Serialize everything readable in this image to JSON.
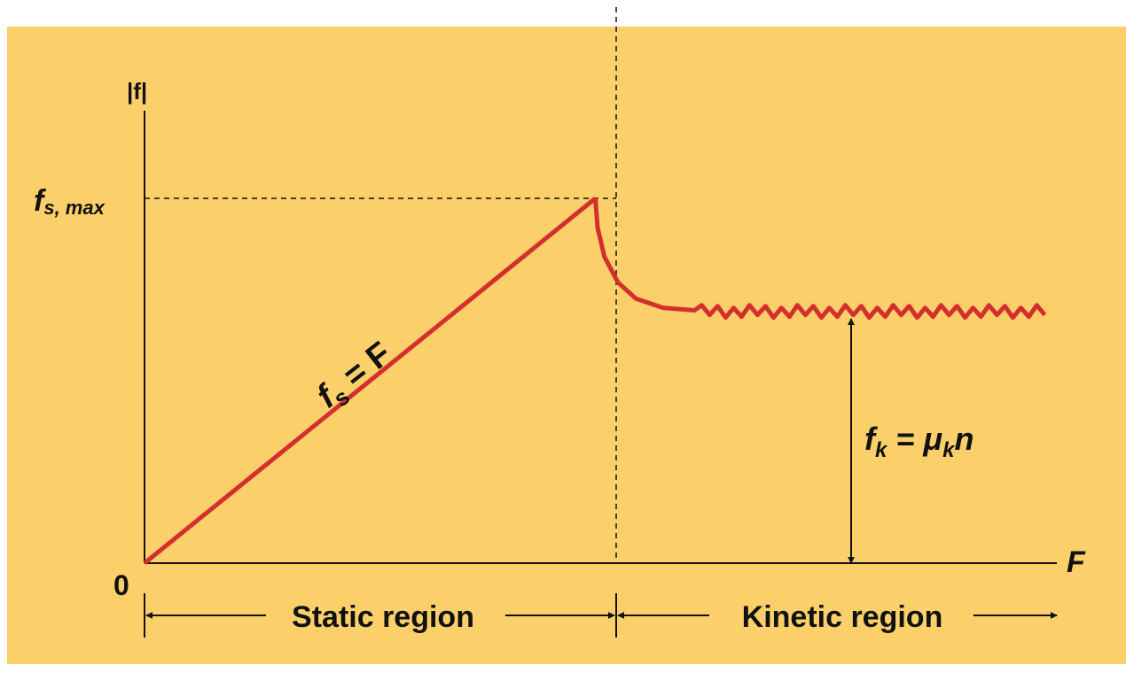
{
  "colors": {
    "background": "#fbd06a",
    "curve": "#d42f2f",
    "axis": "#111111"
  },
  "chart_data": {
    "type": "line",
    "title": "",
    "xlabel": "F",
    "ylabel": "|f|",
    "origin_label": "0",
    "ylim": [
      0,
      1
    ],
    "xlim": [
      0,
      2
    ],
    "ytick_labels": [
      {
        "value": 1.0,
        "main": "f",
        "sub": "s, max"
      }
    ],
    "series": [
      {
        "curve": "static",
        "points": [
          [
            0,
            0
          ],
          [
            1.0,
            1.0
          ]
        ]
      },
      {
        "curve": "kinetic",
        "points": [
          [
            1.0,
            1.0
          ],
          [
            1.005,
            0.92
          ],
          [
            1.02,
            0.84
          ],
          [
            1.05,
            0.77
          ],
          [
            1.09,
            0.725
          ],
          [
            1.15,
            0.7
          ],
          [
            1.22,
            0.693
          ],
          [
            1.3,
            0.69
          ],
          [
            1.5,
            0.69
          ],
          [
            1.8,
            0.69
          ],
          [
            2.0,
            0.69
          ]
        ],
        "jagged_from": 1.22
      }
    ],
    "annotations": {
      "static_curve_label": {
        "main": "f",
        "sub": "s",
        "rest": " = F"
      },
      "kinetic_label": {
        "main": "f",
        "sub": "k",
        "rest": " = μ",
        "sub2": "k",
        "end": "n"
      },
      "static_region": "Static region",
      "kinetic_region": "Kinetic region"
    }
  }
}
